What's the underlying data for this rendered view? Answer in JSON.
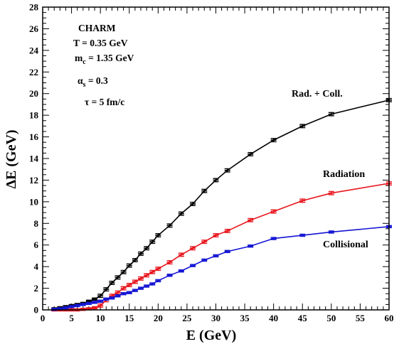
{
  "chart_data": {
    "type": "line",
    "xlabel": "E (GeV)",
    "ylabel": "ΔE (GeV)",
    "xlim": [
      0,
      60
    ],
    "ylim": [
      0,
      28
    ],
    "x_ticks": [
      0,
      5,
      10,
      15,
      20,
      25,
      30,
      35,
      40,
      45,
      50,
      55,
      60
    ],
    "y_ticks": [
      0,
      2,
      4,
      6,
      8,
      10,
      12,
      14,
      16,
      18,
      20,
      22,
      24,
      26,
      28
    ],
    "grid": false,
    "legend": "none",
    "annotations": [
      {
        "text": "CHARM"
      },
      {
        "text": "T = 0.35 GeV"
      },
      {
        "text": "m",
        "sub": "c",
        "suffix": " = 1.35 GeV"
      },
      {
        "text": "α",
        "sub": "s",
        "suffix": " = 0.3"
      },
      {
        "text": "τ = 5 fm/c"
      }
    ],
    "series": [
      {
        "name": "Rad. + Coll.",
        "color": "#000000",
        "x": [
          2,
          3,
          4,
          5,
          6,
          7,
          8,
          9,
          10,
          11,
          12,
          13,
          14,
          15,
          16,
          17,
          18,
          19,
          20,
          22,
          24,
          26,
          28,
          30,
          32,
          36,
          40,
          45,
          50,
          60
        ],
        "y": [
          0.1,
          0.2,
          0.3,
          0.4,
          0.5,
          0.6,
          0.8,
          1.0,
          1.3,
          1.9,
          2.5,
          3.0,
          3.5,
          4.1,
          4.6,
          5.2,
          5.7,
          6.3,
          6.9,
          7.8,
          8.9,
          9.8,
          11.0,
          12.0,
          12.9,
          14.4,
          15.7,
          17.0,
          18.1,
          19.4
        ],
        "err": [
          0.1,
          0.1,
          0.1,
          0.1,
          0.1,
          0.1,
          0.1,
          0.1,
          0.15,
          0.15,
          0.15,
          0.15,
          0.15,
          0.15,
          0.15,
          0.15,
          0.15,
          0.15,
          0.15,
          0.15,
          0.15,
          0.15,
          0.15,
          0.15,
          0.15,
          0.15,
          0.15,
          0.15,
          0.15,
          0.15
        ]
      },
      {
        "name": "Radiation",
        "color": "#e8141c",
        "x": [
          2,
          3,
          4,
          5,
          6,
          7,
          8,
          9,
          10,
          11,
          12,
          13,
          14,
          15,
          16,
          17,
          18,
          19,
          20,
          22,
          24,
          26,
          28,
          30,
          32,
          36,
          40,
          45,
          50,
          60
        ],
        "y": [
          0.0,
          0.0,
          0.0,
          0.0,
          0.0,
          0.05,
          0.1,
          0.2,
          0.4,
          0.9,
          1.3,
          1.6,
          2.0,
          2.3,
          2.6,
          2.9,
          3.2,
          3.5,
          3.8,
          4.4,
          5.1,
          5.7,
          6.3,
          6.9,
          7.3,
          8.3,
          9.1,
          10.1,
          10.8,
          11.7
        ],
        "err": [
          0.1,
          0.1,
          0.1,
          0.1,
          0.1,
          0.1,
          0.1,
          0.1,
          0.15,
          0.15,
          0.15,
          0.15,
          0.15,
          0.15,
          0.15,
          0.15,
          0.15,
          0.15,
          0.15,
          0.15,
          0.15,
          0.15,
          0.15,
          0.15,
          0.15,
          0.15,
          0.15,
          0.15,
          0.15,
          0.15
        ]
      },
      {
        "name": "Collisional",
        "color": "#1414d4",
        "x": [
          2,
          3,
          4,
          5,
          6,
          7,
          8,
          9,
          10,
          11,
          12,
          13,
          14,
          15,
          16,
          17,
          18,
          19,
          20,
          22,
          24,
          26,
          28,
          30,
          32,
          36,
          40,
          45,
          50,
          60
        ],
        "y": [
          0.05,
          0.1,
          0.2,
          0.3,
          0.4,
          0.5,
          0.6,
          0.7,
          0.8,
          1.0,
          1.1,
          1.3,
          1.5,
          1.6,
          1.8,
          2.0,
          2.2,
          2.4,
          2.7,
          3.2,
          3.6,
          4.1,
          4.6,
          5.0,
          5.4,
          5.9,
          6.6,
          6.9,
          7.2,
          7.7
        ],
        "err": [
          0.1,
          0.1,
          0.1,
          0.1,
          0.1,
          0.1,
          0.1,
          0.1,
          0.1,
          0.1,
          0.1,
          0.1,
          0.1,
          0.1,
          0.1,
          0.1,
          0.1,
          0.1,
          0.1,
          0.1,
          0.1,
          0.1,
          0.1,
          0.1,
          0.1,
          0.1,
          0.1,
          0.1,
          0.1,
          0.1
        ]
      }
    ]
  }
}
